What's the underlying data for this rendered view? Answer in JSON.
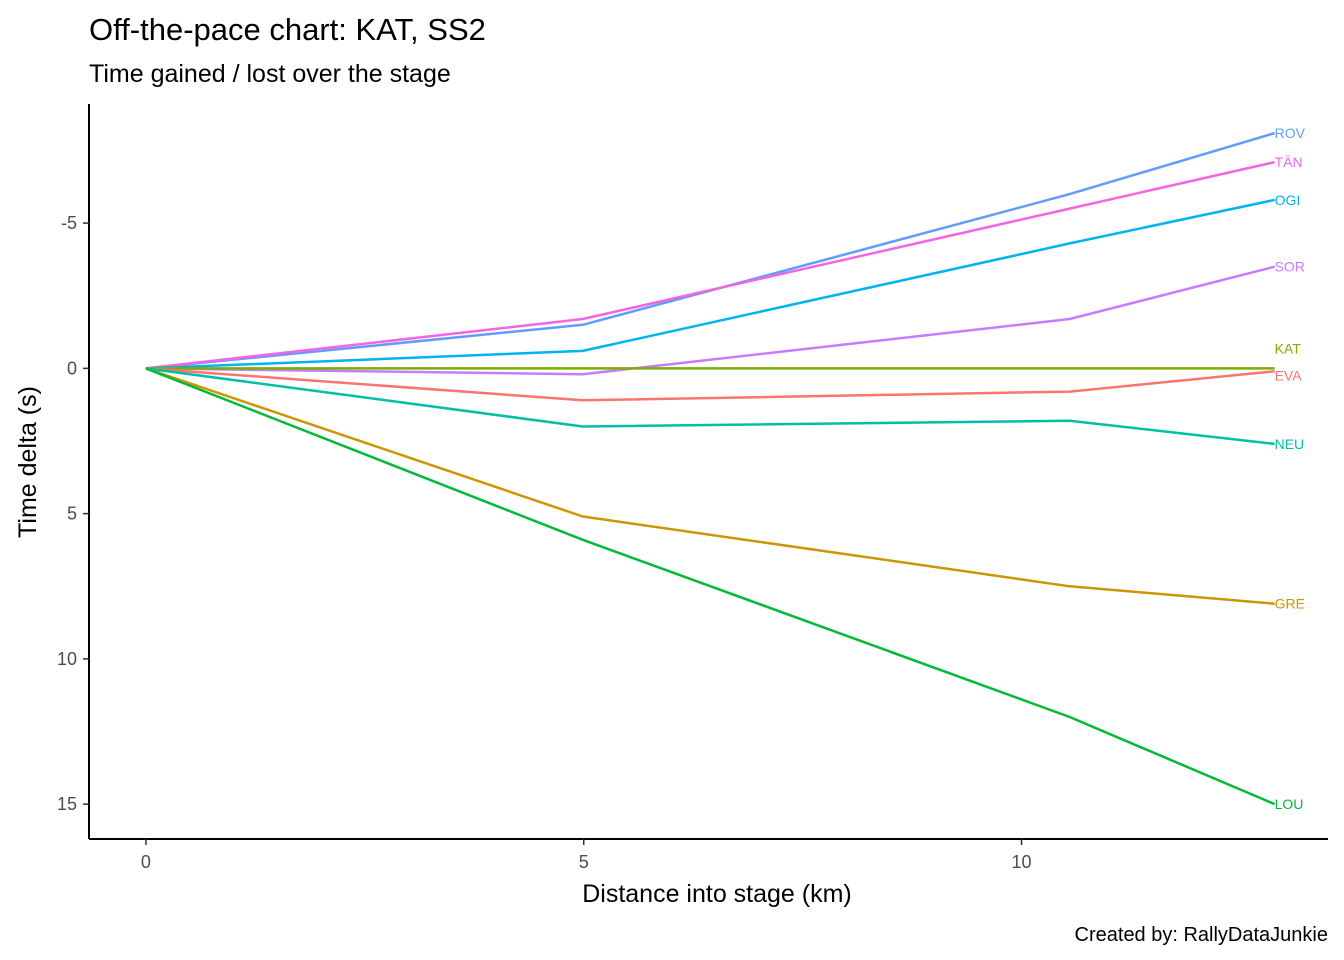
{
  "chart_data": {
    "type": "line",
    "title": "Off-the-pace chart: KAT, SS2",
    "subtitle": "Time gained / lost over the stage",
    "xlabel": "Distance into stage (km)",
    "ylabel": "Time delta (s)",
    "caption": "Created by: RallyDataJunkie",
    "xlim": [
      -0.65,
      13.5
    ],
    "ylim": [
      16.2,
      -9.1
    ],
    "y_reversed": true,
    "x_ticks": [
      0,
      5,
      10
    ],
    "x_tick_labels": [
      "0",
      "5",
      "10"
    ],
    "y_ticks": [
      -5,
      0,
      5,
      10,
      15
    ],
    "y_tick_labels": [
      "-5",
      "0",
      "5",
      "10",
      "15"
    ],
    "grid": false,
    "legend": "none (direct labels at line ends)",
    "x": [
      0,
      4.99,
      10.55,
      12.89
    ],
    "series": [
      {
        "name": "ROV",
        "color": "#619CFF",
        "values": [
          0,
          -1.5,
          -6.0,
          -8.1
        ]
      },
      {
        "name": "TÄN",
        "color": "#F564E3",
        "values": [
          0,
          -1.7,
          -5.5,
          -7.1
        ]
      },
      {
        "name": "OGI",
        "color": "#00B4EF",
        "values": [
          0,
          -0.6,
          -4.3,
          -5.8
        ]
      },
      {
        "name": "SOR",
        "color": "#C77CFF",
        "values": [
          0,
          0.2,
          -1.7,
          -3.5
        ]
      },
      {
        "name": "KAT",
        "color": "#7CAE00",
        "values": [
          0,
          0,
          0,
          0
        ]
      },
      {
        "name": "EVA",
        "color": "#F8766D",
        "values": [
          0,
          1.1,
          0.8,
          0.1
        ]
      },
      {
        "name": "NEU",
        "color": "#00BFA4",
        "values": [
          0,
          2.0,
          1.8,
          2.6
        ]
      },
      {
        "name": "GRE",
        "color": "#CD9600",
        "values": [
          0,
          5.1,
          7.5,
          8.1
        ]
      },
      {
        "name": "LOU",
        "color": "#00BA38",
        "values": [
          0,
          5.9,
          12.0,
          15.0
        ]
      }
    ]
  }
}
